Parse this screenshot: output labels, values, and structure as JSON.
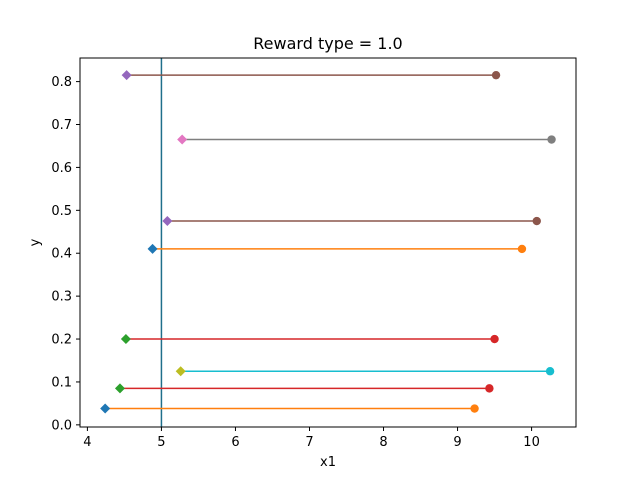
{
  "chart_data": {
    "type": "line",
    "title": "Reward type = 1.0",
    "xlabel": "x1",
    "ylabel": "y",
    "xlim": [
      3.9,
      10.6
    ],
    "ylim": [
      -0.005,
      0.855
    ],
    "xticks": [
      4,
      5,
      6,
      7,
      8,
      9,
      10
    ],
    "yticks": [
      0.0,
      0.1,
      0.2,
      0.3,
      0.4,
      0.5,
      0.6,
      0.7,
      0.8
    ],
    "ytick_labels": [
      "0.0",
      "0.1",
      "0.2",
      "0.3",
      "0.4",
      "0.5",
      "0.6",
      "0.7",
      "0.8"
    ],
    "grid": false,
    "vertical_line": {
      "x": 5.0,
      "color": "#1f6f8b"
    },
    "segments": [
      {
        "y": 0.815,
        "x_start": 4.53,
        "x_end": 9.52,
        "start_color": "#9467bd",
        "line_color": "#8c564b",
        "end_color": "#8c564b"
      },
      {
        "y": 0.665,
        "x_start": 5.28,
        "x_end": 10.27,
        "start_color": "#e377c2",
        "line_color": "#7f7f7f",
        "end_color": "#7f7f7f"
      },
      {
        "y": 0.475,
        "x_start": 5.08,
        "x_end": 10.07,
        "start_color": "#9467bd",
        "line_color": "#8c564b",
        "end_color": "#8c564b"
      },
      {
        "y": 0.41,
        "x_start": 4.88,
        "x_end": 9.87,
        "start_color": "#1f77b4",
        "line_color": "#ff7f0e",
        "end_color": "#ff7f0e"
      },
      {
        "y": 0.2,
        "x_start": 4.52,
        "x_end": 9.5,
        "start_color": "#2ca02c",
        "line_color": "#d62728",
        "end_color": "#d62728"
      },
      {
        "y": 0.125,
        "x_start": 5.26,
        "x_end": 10.25,
        "start_color": "#bcbd22",
        "line_color": "#17becf",
        "end_color": "#17becf"
      },
      {
        "y": 0.085,
        "x_start": 4.44,
        "x_end": 9.43,
        "start_color": "#2ca02c",
        "line_color": "#d62728",
        "end_color": "#d62728"
      },
      {
        "y": 0.038,
        "x_start": 4.24,
        "x_end": 9.23,
        "start_color": "#1f77b4",
        "line_color": "#ff7f0e",
        "end_color": "#ff7f0e"
      }
    ]
  }
}
